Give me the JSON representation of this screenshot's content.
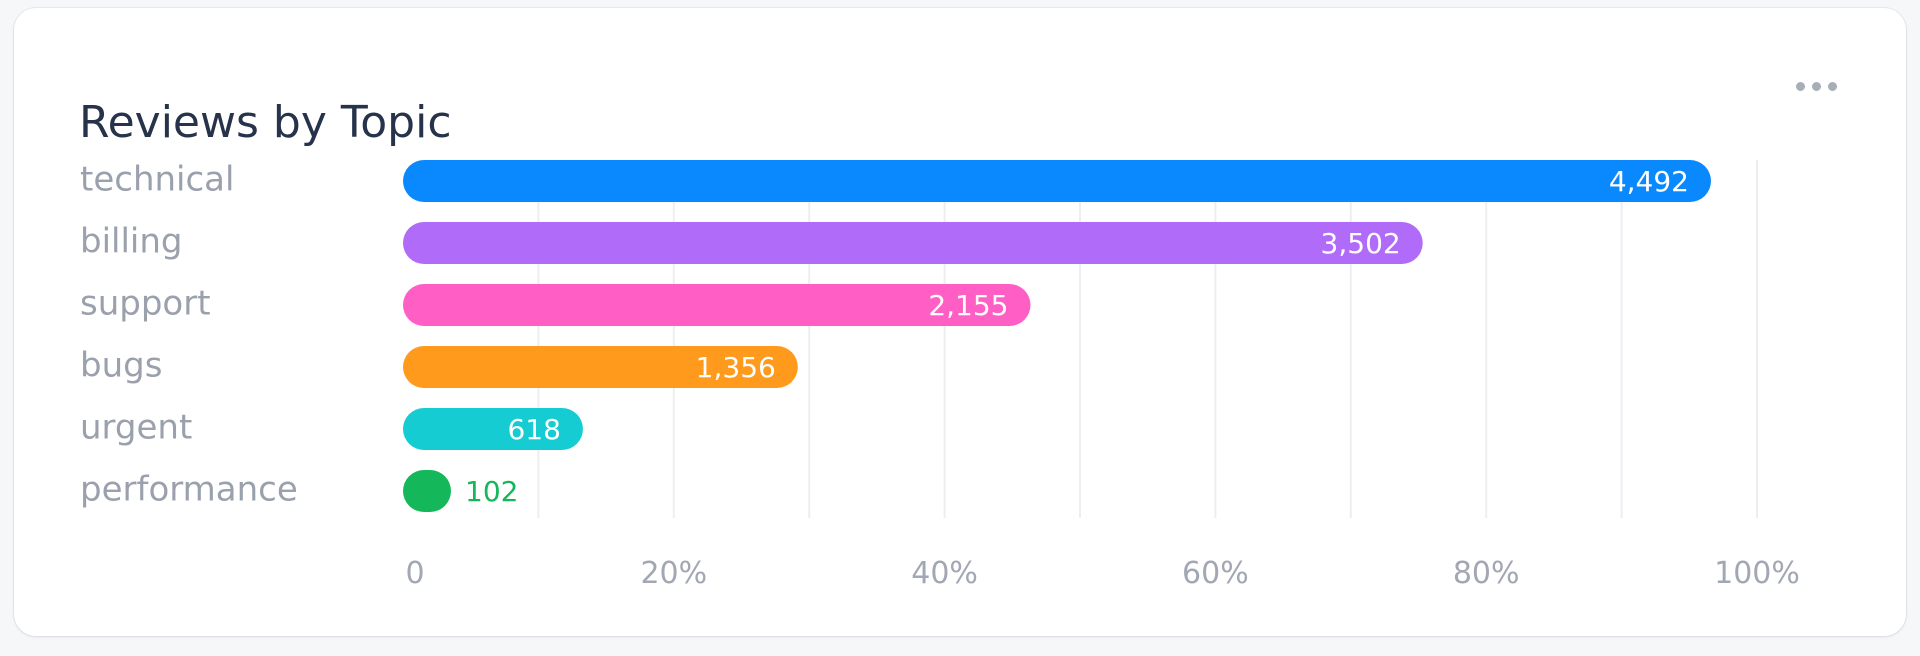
{
  "card": {
    "title": "Reviews by Topic",
    "menu_icon": "more-horizontal-icon"
  },
  "chart_data": {
    "type": "bar",
    "orientation": "horizontal",
    "title": "Reviews by Topic",
    "categories": [
      "technical",
      "billing",
      "support",
      "bugs",
      "urgent",
      "performance"
    ],
    "values": [
      4492,
      3502,
      2155,
      1356,
      618,
      102
    ],
    "value_labels": [
      "4,492",
      "3,502",
      "2,155",
      "1,356",
      "618",
      "102"
    ],
    "colors": [
      "#0a89fe",
      "#b06bf9",
      "#ff5ec4",
      "#ff9a1c",
      "#16ccd3",
      "#14b85a"
    ],
    "x_ticks": [
      "0",
      "20%",
      "40%",
      "60%",
      "80%",
      "100%"
    ],
    "xlim": [
      0,
      4650
    ],
    "grid": true,
    "legend": "none"
  }
}
